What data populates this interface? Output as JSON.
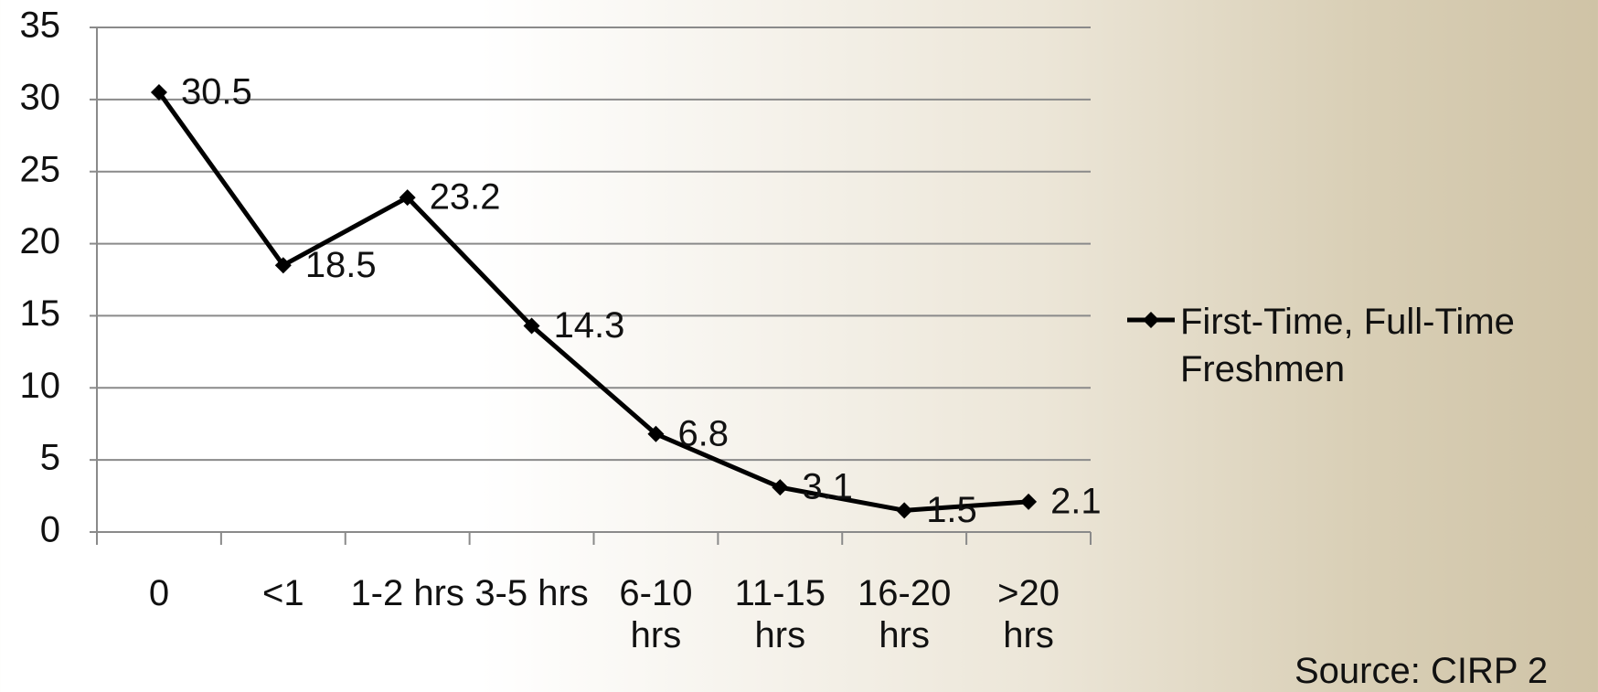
{
  "chart_data": {
    "type": "line",
    "categories": [
      "0",
      "<1",
      "1-2 hrs",
      "3-5 hrs",
      "6-10 hrs",
      "11-15 hrs",
      "16-20 hrs",
      ">20 hrs"
    ],
    "series": [
      {
        "name": "First-Time, Full-Time Freshmen",
        "color": "#000000",
        "values": [
          30.5,
          18.5,
          23.2,
          14.3,
          6.8,
          3.1,
          1.5,
          2.1
        ]
      }
    ],
    "ylim": [
      0,
      35
    ],
    "yticks": [
      0,
      5,
      10,
      15,
      20,
      25,
      30,
      35
    ],
    "grid": true,
    "legend": "right",
    "source": "Source: CIRP 2"
  }
}
